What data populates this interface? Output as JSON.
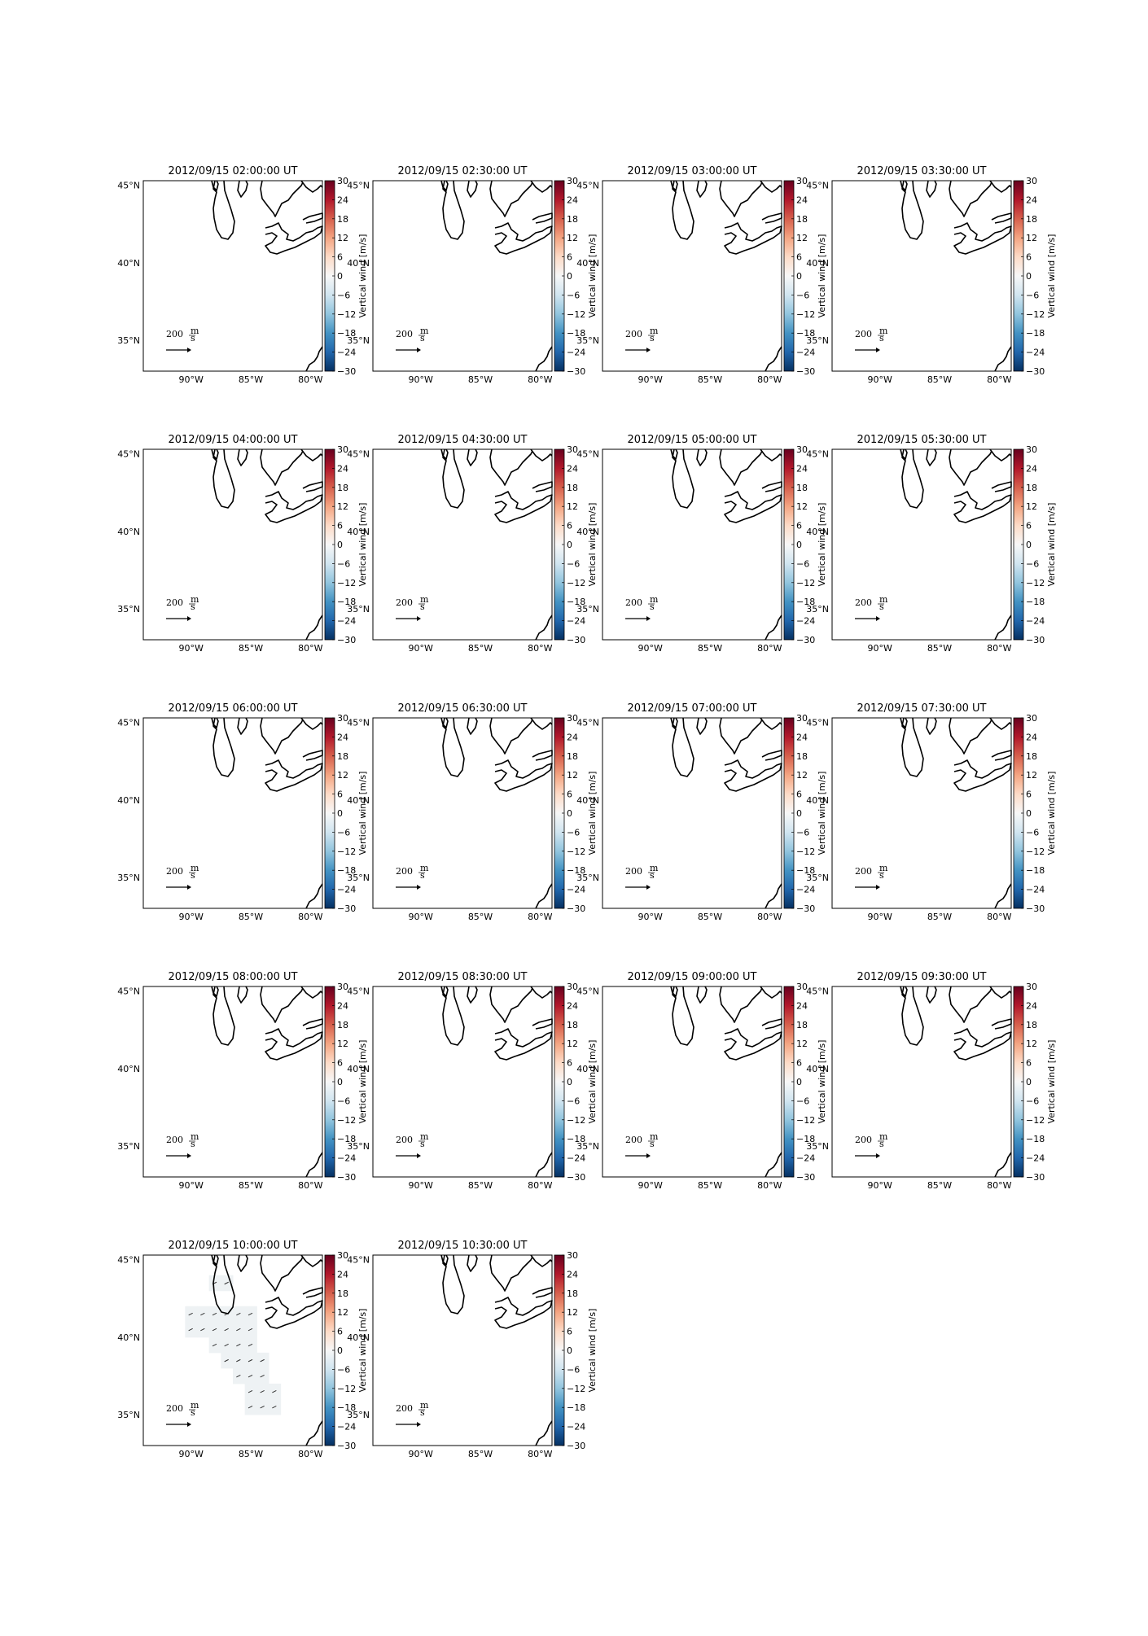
{
  "chart_data": {
    "type": "heatmap",
    "grid": {
      "rows": 5,
      "cols": 4
    },
    "latitude_ticks": [
      "35°N",
      "40°N",
      "45°N"
    ],
    "longitude_ticks": [
      "90°W",
      "85°W",
      "80°W"
    ],
    "colorbar": {
      "label": "Vertical wind [m/s]",
      "range": [
        -30,
        30
      ],
      "ticks": [
        "30",
        "24",
        "18",
        "12",
        "6",
        "0",
        "−6",
        "−12",
        "−18",
        "−24",
        "−30"
      ],
      "colormap": [
        "#67001f",
        "#b2182b",
        "#d6604d",
        "#f4a582",
        "#fddbc7",
        "#f7f7f7",
        "#d1e5f0",
        "#92c5de",
        "#4393c3",
        "#2166ac",
        "#053061"
      ]
    },
    "quiver_key": {
      "value": "200",
      "units_num": "m",
      "units_den": "s"
    },
    "panels": [
      {
        "title": "2012/09/15 02:00:00 UT",
        "has_data": false
      },
      {
        "title": "2012/09/15 02:30:00 UT",
        "has_data": false
      },
      {
        "title": "2012/09/15 03:00:00 UT",
        "has_data": false
      },
      {
        "title": "2012/09/15 03:30:00 UT",
        "has_data": false
      },
      {
        "title": "2012/09/15 04:00:00 UT",
        "has_data": false
      },
      {
        "title": "2012/09/15 04:30:00 UT",
        "has_data": false
      },
      {
        "title": "2012/09/15 05:00:00 UT",
        "has_data": false
      },
      {
        "title": "2012/09/15 05:30:00 UT",
        "has_data": false
      },
      {
        "title": "2012/09/15 06:00:00 UT",
        "has_data": false
      },
      {
        "title": "2012/09/15 06:30:00 UT",
        "has_data": false
      },
      {
        "title": "2012/09/15 07:00:00 UT",
        "has_data": false
      },
      {
        "title": "2012/09/15 07:30:00 UT",
        "has_data": false
      },
      {
        "title": "2012/09/15 08:00:00 UT",
        "has_data": false
      },
      {
        "title": "2012/09/15 08:30:00 UT",
        "has_data": false
      },
      {
        "title": "2012/09/15 09:00:00 UT",
        "has_data": false
      },
      {
        "title": "2012/09/15 09:30:00 UT",
        "has_data": false
      },
      {
        "title": "2012/09/15 10:00:00 UT",
        "has_data": true,
        "field_color": "#eef2f4",
        "vertical_wind_approx": 0,
        "coverage_note_lonlat": [
          [
            -88,
            43.5
          ],
          [
            -87,
            43.5
          ],
          [
            -90,
            41.5
          ],
          [
            -89,
            41.5
          ],
          [
            -88,
            41.5
          ],
          [
            -87,
            41.5
          ],
          [
            -86,
            41.5
          ],
          [
            -85,
            41.5
          ],
          [
            -90,
            40.5
          ],
          [
            -89,
            40.5
          ],
          [
            -88,
            40.5
          ],
          [
            -87,
            40.5
          ],
          [
            -86,
            40.5
          ],
          [
            -85,
            40.5
          ],
          [
            -88,
            39.5
          ],
          [
            -87,
            39.5
          ],
          [
            -86,
            39.5
          ],
          [
            -85,
            39.5
          ],
          [
            -87,
            38.5
          ],
          [
            -86,
            38.5
          ],
          [
            -85,
            38.5
          ],
          [
            -84,
            38.5
          ],
          [
            -86,
            37.5
          ],
          [
            -85,
            37.5
          ],
          [
            -84,
            37.5
          ],
          [
            -85,
            36.5
          ],
          [
            -84,
            36.5
          ],
          [
            -83,
            36.5
          ],
          [
            -85,
            35.5
          ],
          [
            -84,
            35.5
          ],
          [
            -83,
            35.5
          ]
        ]
      },
      {
        "title": "2012/09/15 10:30:00 UT",
        "has_data": false
      }
    ]
  }
}
